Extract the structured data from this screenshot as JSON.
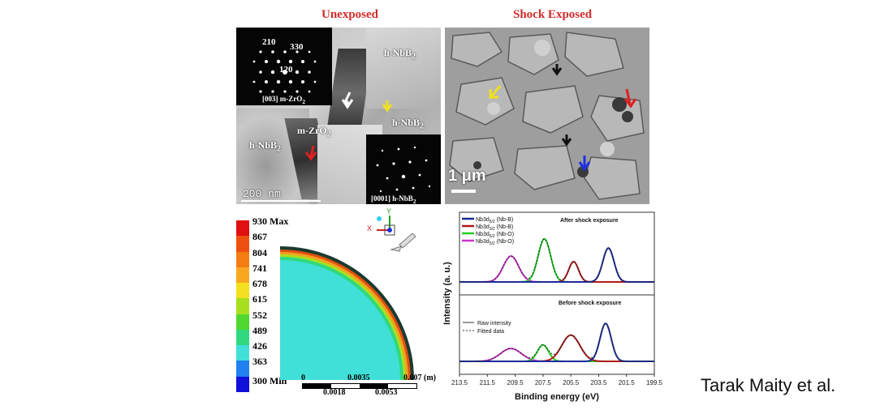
{
  "panels": {
    "unexposed": {
      "title": "Unexposed",
      "labels": [
        "h-NbB2_top",
        "h-NbB2_mid",
        "m-ZrO2",
        "h-NbB2_left"
      ],
      "label_text": {
        "nbb2_top": "h-NbB",
        "nbb2_top_sub": "2",
        "nbb2_mid": "h-NbB",
        "nbb2_mid_sub": "2",
        "zro2": "m-ZrO",
        "zro2_sub": "2",
        "nbb2_left": "h-NbB",
        "nbb2_left_sub": "2"
      },
      "scale_bar": "200 nm",
      "saed_zro2": {
        "spots": [
          "210",
          "330",
          "120"
        ],
        "caption": "[003] m-ZrO",
        "caption_sub": "2"
      },
      "saed_nbb2": {
        "caption": "[0001] h-NbB",
        "caption_sub": "2"
      }
    },
    "shock": {
      "title": "Shock Exposed",
      "scale_bar": "1 μm"
    }
  },
  "contour": {
    "legend": [
      {
        "label": "930 Max",
        "color": "#e01010"
      },
      {
        "label": "867",
        "color": "#ee5010"
      },
      {
        "label": "804",
        "color": "#f47c10"
      },
      {
        "label": "741",
        "color": "#f8a820"
      },
      {
        "label": "678",
        "color": "#f4e020"
      },
      {
        "label": "615",
        "color": "#a8e020"
      },
      {
        "label": "552",
        "color": "#50d830"
      },
      {
        "label": "489",
        "color": "#30d880"
      },
      {
        "label": "426",
        "color": "#40e0d8"
      },
      {
        "label": "363",
        "color": "#2080f0"
      },
      {
        "label": "300 Min",
        "color": "#1010d8"
      }
    ],
    "axis_label_x": "X",
    "axis_label_y": "Y",
    "scale_top": {
      "start": "0",
      "mid": "0.0035",
      "end": "0.007 (m)"
    },
    "scale_bottom": {
      "a": "0.0018",
      "b": "0.0053"
    }
  },
  "chart_data": {
    "type": "line",
    "xlabel": "Binding energy (eV)",
    "ylabel": "Intensity (a. u.)",
    "xlim": [
      213.5,
      199.5
    ],
    "x_ticks": [
      "213.5",
      "211.5",
      "209.5",
      "207.5",
      "205.5",
      "203.5",
      "201.5",
      "199.5"
    ],
    "legend_top": [
      {
        "name": "Nb3d",
        "sub": "5/2",
        "suffix": " (Nb-B)",
        "color": "#1a2a9a"
      },
      {
        "name": "Nb3d",
        "sub": "3/2",
        "suffix": " (Nb-B)",
        "color": "#b01818"
      },
      {
        "name": "Nb3d",
        "sub": "5/2",
        "suffix": " (Nb-O)",
        "color": "#22cc22"
      },
      {
        "name": "Nb3d",
        "sub": "3/2",
        "suffix": " (Nb-O)",
        "color": "#cc33cc"
      }
    ],
    "legend_bottom": [
      {
        "name": "Raw intensity",
        "style": "solid"
      },
      {
        "name": "Fitted data",
        "style": "dotted"
      }
    ],
    "panel_titles": [
      "After shock exposure",
      "Before shock exposure"
    ],
    "after": {
      "peaks": [
        {
          "center": 209.8,
          "height": 0.42,
          "width": 0.55,
          "color": "#cc33cc"
        },
        {
          "center": 207.4,
          "height": 0.7,
          "width": 0.45,
          "color": "#22cc22"
        },
        {
          "center": 205.3,
          "height": 0.33,
          "width": 0.35,
          "color": "#b01818"
        },
        {
          "center": 202.8,
          "height": 0.55,
          "width": 0.4,
          "color": "#1a2a9a"
        }
      ]
    },
    "before": {
      "peaks": [
        {
          "center": 209.8,
          "height": 0.22,
          "width": 0.75,
          "color": "#cc33cc"
        },
        {
          "center": 207.5,
          "height": 0.28,
          "width": 0.4,
          "color": "#22cc22"
        },
        {
          "center": 205.5,
          "height": 0.45,
          "width": 0.65,
          "color": "#b01818"
        },
        {
          "center": 203.0,
          "height": 0.65,
          "width": 0.4,
          "color": "#1a2a9a"
        }
      ]
    }
  },
  "credit": "Tarak Maity et al."
}
